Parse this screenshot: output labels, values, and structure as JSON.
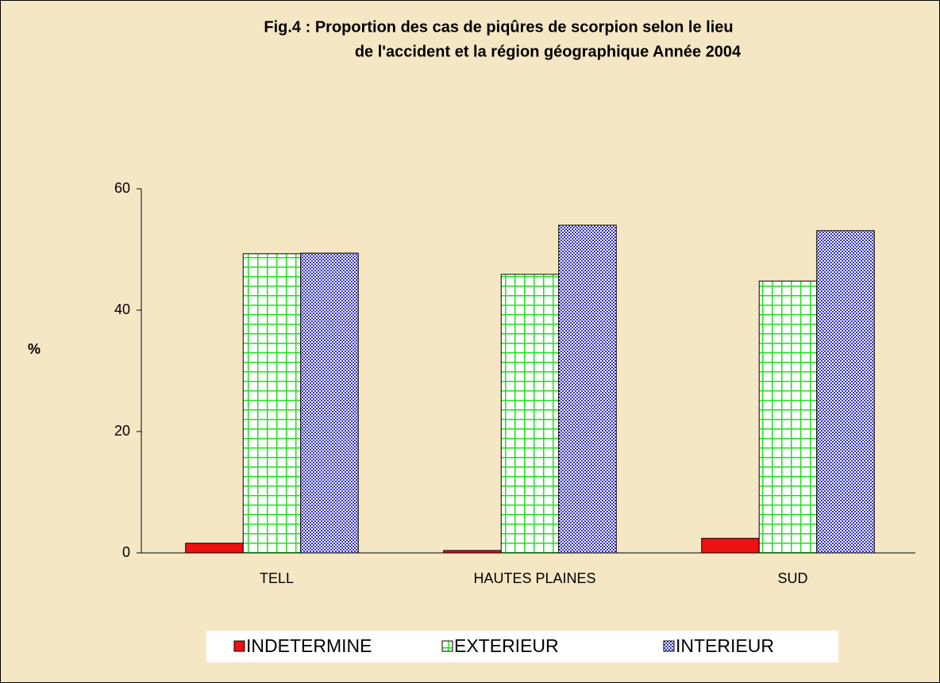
{
  "chart_data": {
    "type": "bar",
    "title": [
      "Fig.4 : Proportion des cas de piqûres de scorpion selon le lieu",
      "de l'accident et la région géographique  Année 2004"
    ],
    "ylabel": "%",
    "categories": [
      "TELL",
      "HAUTES PLAINES",
      "SUD"
    ],
    "series": [
      {
        "name": "INDETERMINE",
        "color": "#ee1111",
        "pattern": "solid",
        "values": [
          1.6,
          0.4,
          2.4
        ]
      },
      {
        "name": "EXTERIEUR",
        "color": "#22dd22",
        "pattern": "grid",
        "values": [
          49.3,
          45.9,
          44.8
        ]
      },
      {
        "name": "INTERIEUR",
        "color": "#3333cc",
        "pattern": "dots",
        "values": [
          49.4,
          54.0,
          53.1
        ]
      }
    ],
    "ylim": [
      0,
      60
    ],
    "yticks": [
      0,
      20,
      40,
      60
    ],
    "grid": false,
    "legend": "bottom"
  }
}
